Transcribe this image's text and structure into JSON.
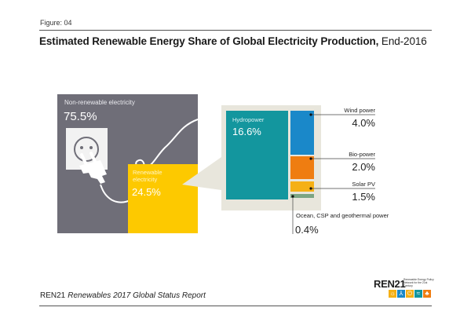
{
  "header": {
    "figure_label": "Figure: 04",
    "title_bold": "Estimated Renewable Energy Share of Global Electricity Production,",
    "title_regular": " End-2016"
  },
  "chart_data": {
    "type": "treemap",
    "title": "Estimated Renewable Energy Share of Global Electricity Production, End-2016",
    "total": {
      "categories": [
        "Non-renewable electricity",
        "Renewable electricity"
      ],
      "values": [
        75.5,
        24.5
      ],
      "labels": [
        "75.5%",
        "24.5%"
      ],
      "unit": "%"
    },
    "renewable_breakdown": {
      "categories": [
        "Hydropower",
        "Wind power",
        "Bio-power",
        "Solar PV",
        "Ocean, CSP and geothermal power"
      ],
      "values": [
        16.6,
        4.0,
        2.0,
        1.5,
        0.4
      ],
      "labels": [
        "16.6%",
        "4.0%",
        "2.0%",
        "1.5%",
        "0.4%"
      ],
      "unit": "%"
    },
    "colors": {
      "non_renewable": "#6f6e78",
      "renewable": "#fdc900",
      "callout": "#e8e6dc",
      "hydropower": "#13969e",
      "wind": "#1a88c9",
      "bio": "#ef7d11",
      "solar": "#f5b015",
      "ocean": "#7ba583"
    },
    "icons": [
      "power-socket-icon",
      "plug-icon",
      "cable-icon"
    ]
  },
  "footer": {
    "org": "REN21",
    "report": "Renewables 2017 Global Status Report"
  },
  "logo": {
    "wordmark": "REN21",
    "tagline": "Renewable Energy Policy Network for the 21st Century",
    "tiles": [
      {
        "icon": "sun-icon",
        "glyph": "☼",
        "color": "#f5b015"
      },
      {
        "icon": "wind-turbine-icon",
        "glyph": "⅄",
        "color": "#1a88c9"
      },
      {
        "icon": "power-icon",
        "glyph": "⏻",
        "color": "#f5b015"
      },
      {
        "icon": "wave-icon",
        "glyph": "≈",
        "color": "#13969e"
      },
      {
        "icon": "leaf-icon",
        "glyph": "♣",
        "color": "#ef7d11"
      }
    ]
  }
}
